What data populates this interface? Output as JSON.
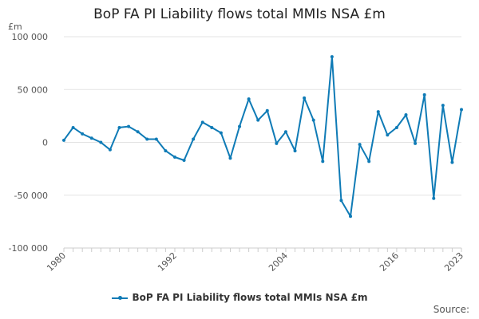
{
  "chart_data": {
    "type": "line",
    "title": "BoP FA PI Liability flows total MMIs NSA £m",
    "unit_label": "£m",
    "xlabel": "",
    "ylabel": "",
    "ylim": [
      -100000,
      100000
    ],
    "y_ticks": [
      100000,
      50000,
      0,
      -50000,
      -100000
    ],
    "y_tick_labels": [
      "100 000",
      "50 000",
      "0",
      "-50 000",
      "-100 000"
    ],
    "x_ticks": [
      1980,
      1992,
      2004,
      2016,
      2023
    ],
    "x_tick_labels": [
      "1980",
      "1992",
      "2004",
      "2016",
      "2023"
    ],
    "grid": true,
    "legend_position": "bottom",
    "series": [
      {
        "name": "BoP FA PI Liability flows total MMIs NSA £m",
        "color": "#0f7bb6",
        "x": [
          1980,
          1981,
          1982,
          1983,
          1984,
          1985,
          1986,
          1987,
          1988,
          1989,
          1990,
          1991,
          1992,
          1993,
          1994,
          1995,
          1996,
          1997,
          1998,
          1999,
          2000,
          2001,
          2002,
          2003,
          2004,
          2005,
          2006,
          2007,
          2008,
          2009,
          2010,
          2011,
          2012,
          2013,
          2014,
          2015,
          2016,
          2017,
          2018,
          2019,
          2020,
          2021,
          2022,
          2023
        ],
        "values": [
          2000,
          14000,
          8000,
          4000,
          0,
          -7000,
          14000,
          15000,
          10000,
          3000,
          3000,
          -8000,
          -14000,
          -17000,
          3000,
          19000,
          14000,
          9000,
          -15000,
          15000,
          41000,
          21000,
          30000,
          -1000,
          10000,
          -8000,
          42000,
          21000,
          -18000,
          81000,
          -55000,
          -70000,
          -2000,
          -18000,
          29000,
          7000,
          14000,
          26000,
          -1000,
          45000,
          -53000,
          35000,
          -19000,
          31000
        ]
      }
    ]
  },
  "source_label": "Source:"
}
